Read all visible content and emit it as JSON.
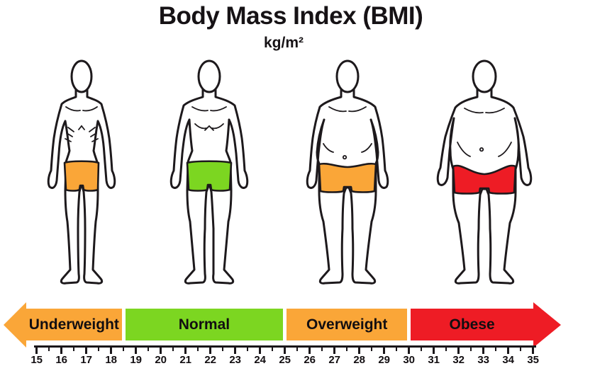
{
  "title": "Body Mass Index (BMI)",
  "units_label": "kg/m²",
  "colors": {
    "underweight": "#faa638",
    "normal": "#7cd621",
    "overweight": "#faa638",
    "obese": "#ee1c25",
    "outline": "#1d191c"
  },
  "figures": [
    {
      "name": "underweight",
      "shorts_color": "#faa638"
    },
    {
      "name": "normal",
      "shorts_color": "#7cd621"
    },
    {
      "name": "overweight",
      "shorts_color": "#faa638"
    },
    {
      "name": "obese",
      "shorts_color": "#ee1c25"
    }
  ],
  "scale": {
    "bands": [
      {
        "label": "Underweight",
        "color": "#faa638",
        "from": null,
        "to": 18.5,
        "arrow": "left"
      },
      {
        "label": "Normal",
        "color": "#7cd621",
        "from": 18.5,
        "to": 25,
        "arrow": null
      },
      {
        "label": "Overweight",
        "color": "#faa638",
        "from": 25,
        "to": 30,
        "arrow": null
      },
      {
        "label": "Obese",
        "color": "#ee1c25",
        "from": 30,
        "to": null,
        "arrow": "right"
      }
    ],
    "axis": {
      "min": 15,
      "max": 35,
      "major_step": 1,
      "minor_step": 0.5,
      "tick_labels": [
        "15",
        "16",
        "17",
        "18",
        "19",
        "20",
        "21",
        "22",
        "23",
        "24",
        "25",
        "26",
        "27",
        "28",
        "29",
        "30",
        "31",
        "32",
        "33",
        "34",
        "35"
      ]
    }
  }
}
